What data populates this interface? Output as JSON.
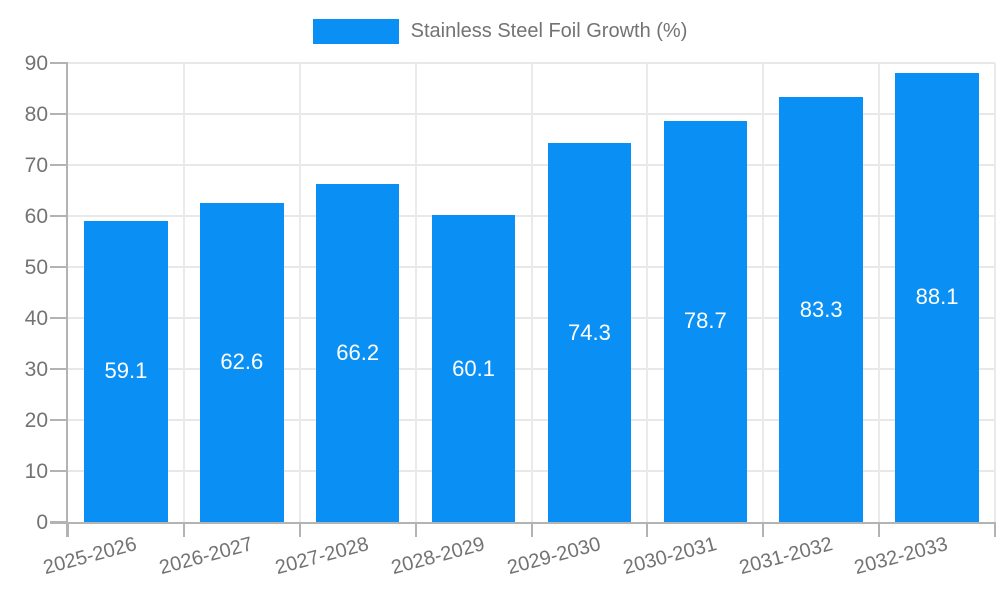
{
  "legend": {
    "items": [
      {
        "label": "Stainless Steel Foil Growth (%)",
        "color": "#0a90f5"
      }
    ]
  },
  "chart_data": {
    "type": "bar",
    "title": "",
    "categories": [
      "2025-2026",
      "2026-2027",
      "2027-2028",
      "2028-2029",
      "2029-2030",
      "2030-2031",
      "2031-2032",
      "2032-2033"
    ],
    "series": [
      {
        "name": "Stainless Steel Foil Growth (%)",
        "values": [
          59.1,
          62.6,
          66.2,
          60.1,
          74.3,
          78.7,
          83.3,
          88.1
        ],
        "color": "#0a90f5"
      }
    ],
    "value_labels": [
      "59.1",
      "62.6",
      "66.2",
      "60.1",
      "74.3",
      "78.7",
      "83.3",
      "88.1"
    ],
    "value_label_position": "inside-center",
    "value_label_color": "#ffffff",
    "xlabel": "",
    "ylabel": "",
    "ylim": [
      0,
      90
    ],
    "yticks": [
      0,
      10,
      20,
      30,
      40,
      50,
      60,
      70,
      80,
      90
    ],
    "grid": true,
    "legend_position": "top-center",
    "axis_text_color": "#737373",
    "grid_color": "#e8e8e8",
    "axis_color": "#b3b3b3",
    "x_label_rotation_deg": -15
  }
}
